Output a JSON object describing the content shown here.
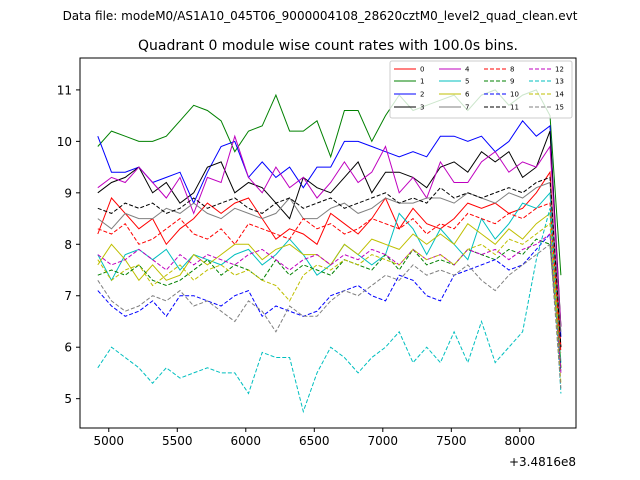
{
  "suptitle": "Data file: modeM0/AS1A10_045T06_9000004108_28620cztM0_level2_quad_clean.evt",
  "chart_data": {
    "type": "line",
    "title": "Quadrant 0 module wise count rates with 100.0s bins.",
    "xlabel": "",
    "ylabel": "",
    "offset_label": "+3.4816e8",
    "xlim": [
      4790,
      8410
    ],
    "ylim": [
      4.43,
      11.62
    ],
    "xticks": [
      5000,
      5500,
      6000,
      6500,
      7000,
      7500,
      8000
    ],
    "xtick_labels": [
      "5000",
      "5500",
      "6000",
      "6500",
      "7000",
      "7500",
      "8000"
    ],
    "yticks": [
      5,
      6,
      7,
      8,
      9,
      10,
      11
    ],
    "ytick_labels": [
      "5",
      "6",
      "7",
      "8",
      "9",
      "10",
      "11"
    ],
    "grid": false,
    "legend_position": "top-right",
    "x": [
      4920,
      5020,
      5120,
      5220,
      5320,
      5420,
      5520,
      5620,
      5720,
      5820,
      5920,
      6020,
      6120,
      6220,
      6320,
      6420,
      6520,
      6620,
      6720,
      6820,
      6920,
      7020,
      7120,
      7220,
      7320,
      7420,
      7520,
      7620,
      7720,
      7820,
      7920,
      8020,
      8120,
      8220,
      8300
    ],
    "series": [
      {
        "name": "0",
        "color": "#ff0000",
        "style": "solid",
        "values": [
          8.2,
          8.9,
          8.6,
          8.3,
          8.5,
          8.0,
          8.3,
          8.5,
          8.8,
          8.6,
          8.8,
          8.9,
          8.5,
          8.1,
          8.3,
          8.2,
          8.0,
          8.6,
          8.4,
          8.2,
          8.5,
          8.9,
          8.3,
          8.7,
          8.4,
          8.3,
          8.5,
          8.8,
          8.7,
          8.8,
          8.6,
          8.7,
          9.0,
          9.4,
          6.0
        ]
      },
      {
        "name": "1",
        "color": "#008000",
        "style": "solid",
        "values": [
          9.9,
          10.2,
          10.1,
          10.0,
          10.0,
          10.1,
          10.4,
          10.7,
          10.6,
          10.4,
          9.8,
          10.2,
          10.3,
          10.9,
          10.2,
          10.2,
          10.4,
          9.7,
          10.6,
          10.6,
          10.0,
          10.5,
          10.9,
          10.6,
          10.7,
          10.8,
          10.9,
          10.6,
          10.9,
          11.0,
          10.7,
          10.9,
          11.0,
          10.5,
          7.4
        ]
      },
      {
        "name": "2",
        "color": "#0000ff",
        "style": "solid",
        "values": [
          10.1,
          9.4,
          9.4,
          9.5,
          9.2,
          9.3,
          9.4,
          8.8,
          9.4,
          9.9,
          10.0,
          9.3,
          9.6,
          9.3,
          9.5,
          9.1,
          9.5,
          9.5,
          10.0,
          10.0,
          9.9,
          9.8,
          9.7,
          9.8,
          9.7,
          10.1,
          10.1,
          10.0,
          10.1,
          9.8,
          10.0,
          10.4,
          10.1,
          10.3,
          6.2
        ]
      },
      {
        "name": "3",
        "color": "#000000",
        "style": "solid",
        "values": [
          9.0,
          9.2,
          9.3,
          9.5,
          9.0,
          9.2,
          8.8,
          9.0,
          9.5,
          9.6,
          9.0,
          9.2,
          9.1,
          8.8,
          8.5,
          9.3,
          9.1,
          9.0,
          9.3,
          9.6,
          9.0,
          9.4,
          9.4,
          9.3,
          9.1,
          9.5,
          9.6,
          9.4,
          9.8,
          9.6,
          9.8,
          9.3,
          9.5,
          10.2,
          6.4
        ]
      },
      {
        "name": "4",
        "color": "#bf00bf",
        "style": "solid",
        "values": [
          9.1,
          9.3,
          9.2,
          9.5,
          9.2,
          8.9,
          9.3,
          8.6,
          9.3,
          9.2,
          10.1,
          9.3,
          9.0,
          9.5,
          9.1,
          9.3,
          8.9,
          9.2,
          9.6,
          9.2,
          9.4,
          9.9,
          9.0,
          9.3,
          8.9,
          9.6,
          9.2,
          9.2,
          9.6,
          9.8,
          9.4,
          9.6,
          9.5,
          9.9,
          6.4
        ]
      },
      {
        "name": "5",
        "color": "#00bfbf",
        "style": "solid",
        "values": [
          7.8,
          7.3,
          7.8,
          7.9,
          7.7,
          7.9,
          7.5,
          7.8,
          7.7,
          7.6,
          7.8,
          7.9,
          7.6,
          7.8,
          8.1,
          7.8,
          7.4,
          7.6,
          8.0,
          7.8,
          7.6,
          7.8,
          8.6,
          8.3,
          7.8,
          8.3,
          8.0,
          7.7,
          8.5,
          8.1,
          8.4,
          8.8,
          8.7,
          9.0,
          5.7
        ]
      },
      {
        "name": "6",
        "color": "#bfbf00",
        "style": "solid",
        "values": [
          7.6,
          8.0,
          7.7,
          7.3,
          7.6,
          7.3,
          7.4,
          7.8,
          7.6,
          7.8,
          8.0,
          8.0,
          7.7,
          7.9,
          8.0,
          7.8,
          7.8,
          7.6,
          8.0,
          7.8,
          8.1,
          8.0,
          7.9,
          8.2,
          8.0,
          8.2,
          8.0,
          8.4,
          8.2,
          8.0,
          8.3,
          8.1,
          8.4,
          8.6,
          5.6
        ]
      },
      {
        "name": "7",
        "color": "#808080",
        "style": "solid",
        "values": [
          8.5,
          8.3,
          8.6,
          8.5,
          8.5,
          8.7,
          8.6,
          8.8,
          8.6,
          8.5,
          8.7,
          8.6,
          8.5,
          8.6,
          8.9,
          8.5,
          8.5,
          8.7,
          8.8,
          8.6,
          8.7,
          8.9,
          8.8,
          8.8,
          8.9,
          8.9,
          8.8,
          9.0,
          8.9,
          8.8,
          9.0,
          8.9,
          9.1,
          9.2,
          6.3
        ]
      },
      {
        "name": "8",
        "color": "#ff0000",
        "style": "dashed",
        "values": [
          8.3,
          8.2,
          8.4,
          8.0,
          8.1,
          8.3,
          8.5,
          8.2,
          8.1,
          8.3,
          8.0,
          8.4,
          8.3,
          8.2,
          8.1,
          8.5,
          8.3,
          8.4,
          8.2,
          8.3,
          8.5,
          8.4,
          8.3,
          8.5,
          8.2,
          8.4,
          8.3,
          8.6,
          8.5,
          8.4,
          8.6,
          8.5,
          8.7,
          8.8,
          5.9
        ]
      },
      {
        "name": "9",
        "color": "#008000",
        "style": "dashed",
        "values": [
          7.4,
          7.5,
          7.4,
          7.6,
          7.3,
          7.2,
          7.3,
          7.5,
          7.7,
          7.4,
          7.6,
          7.5,
          7.3,
          7.7,
          7.4,
          7.6,
          7.5,
          7.4,
          7.7,
          7.6,
          7.5,
          7.8,
          7.5,
          7.9,
          7.6,
          7.7,
          7.6,
          7.9,
          7.8,
          7.7,
          7.9,
          7.8,
          8.1,
          8.0,
          5.6
        ]
      },
      {
        "name": "10",
        "color": "#0000ff",
        "style": "dashed",
        "values": [
          7.1,
          6.8,
          6.6,
          6.7,
          6.9,
          6.6,
          7.0,
          7.0,
          6.9,
          6.8,
          7.0,
          7.1,
          6.6,
          6.8,
          6.7,
          6.6,
          6.7,
          7.0,
          7.1,
          7.2,
          7.0,
          6.9,
          7.4,
          7.3,
          7.0,
          6.9,
          7.4,
          7.5,
          7.6,
          7.7,
          7.5,
          7.6,
          7.9,
          8.2,
          5.5
        ]
      },
      {
        "name": "11",
        "color": "#000000",
        "style": "dashed",
        "values": [
          8.7,
          8.6,
          8.8,
          8.7,
          8.8,
          8.6,
          8.7,
          8.9,
          8.7,
          8.8,
          8.9,
          8.7,
          8.6,
          8.8,
          8.9,
          8.7,
          8.8,
          8.9,
          8.7,
          8.8,
          8.9,
          9.0,
          8.8,
          8.9,
          8.8,
          9.1,
          8.9,
          9.0,
          8.9,
          9.0,
          9.1,
          9.0,
          9.2,
          9.3,
          6.0
        ]
      },
      {
        "name": "12",
        "color": "#bf00bf",
        "style": "dashed",
        "values": [
          7.8,
          7.6,
          7.7,
          7.9,
          7.7,
          7.5,
          7.8,
          7.6,
          7.8,
          7.7,
          7.6,
          7.8,
          7.9,
          7.7,
          7.5,
          7.7,
          7.8,
          7.6,
          7.8,
          7.7,
          7.9,
          7.8,
          7.6,
          7.9,
          7.7,
          7.8,
          7.6,
          7.9,
          7.8,
          7.9,
          7.7,
          7.9,
          8.0,
          8.2,
          5.5
        ]
      },
      {
        "name": "13",
        "color": "#00bfbf",
        "style": "dashed",
        "values": [
          5.6,
          6.0,
          5.8,
          5.6,
          5.3,
          5.6,
          5.4,
          5.5,
          5.6,
          5.5,
          5.5,
          5.1,
          5.9,
          5.8,
          5.8,
          4.75,
          5.5,
          6.0,
          5.8,
          5.5,
          5.8,
          6.0,
          6.3,
          5.7,
          6.0,
          5.7,
          6.3,
          5.7,
          6.5,
          5.7,
          6.0,
          6.3,
          7.7,
          8.7,
          5.1
        ]
      },
      {
        "name": "14",
        "color": "#bfbf00",
        "style": "dashed",
        "values": [
          7.7,
          7.3,
          7.5,
          7.6,
          7.2,
          7.4,
          7.6,
          7.3,
          7.5,
          7.6,
          7.4,
          7.5,
          7.3,
          7.2,
          6.9,
          7.4,
          7.6,
          7.5,
          7.7,
          7.6,
          7.8,
          7.7,
          7.6,
          7.9,
          7.7,
          7.8,
          7.6,
          7.9,
          8.0,
          7.8,
          8.1,
          8.0,
          8.2,
          8.4,
          5.3
        ]
      },
      {
        "name": "15",
        "color": "#808080",
        "style": "dashed",
        "values": [
          7.3,
          6.9,
          6.7,
          6.8,
          7.0,
          6.9,
          7.1,
          6.8,
          6.9,
          6.7,
          6.5,
          6.9,
          6.7,
          6.3,
          6.8,
          6.6,
          6.6,
          6.9,
          7.1,
          7.0,
          7.2,
          7.4,
          7.3,
          7.6,
          7.4,
          7.5,
          7.4,
          7.6,
          7.3,
          7.1,
          7.4,
          7.6,
          7.8,
          8.0,
          5.2
        ]
      }
    ]
  }
}
